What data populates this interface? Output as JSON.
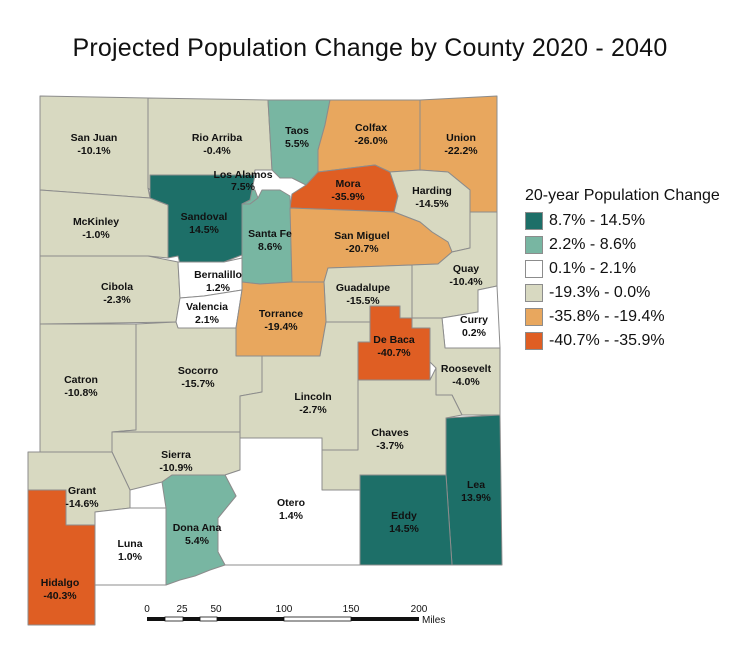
{
  "title": "Projected Population Change by County 2020 - 2040",
  "colors": {
    "c1": "#1d6f68",
    "c2": "#78b6a2",
    "c3": "#ffffff",
    "c4": "#d8d9c1",
    "c5": "#e8a75e",
    "c6": "#df5e23",
    "border": "#8c8c8c"
  },
  "legend": {
    "title": "20-year Population Change",
    "items": [
      {
        "label": "8.7% - 14.5%",
        "color": "#1d6f68"
      },
      {
        "label": "2.2% - 8.6%",
        "color": "#78b6a2"
      },
      {
        "label": "0.1% - 2.1%",
        "color": "#ffffff"
      },
      {
        "label": "-19.3% - 0.0%",
        "color": "#d8d9c1"
      },
      {
        "label": "-35.8% - -19.4%",
        "color": "#e8a75e"
      },
      {
        "label": "-40.7% - -35.9%",
        "color": "#df5e23"
      }
    ]
  },
  "counties": [
    {
      "name": "San Juan",
      "value": "-10.1%"
    },
    {
      "name": "Rio Arriba",
      "value": "-0.4%"
    },
    {
      "name": "Taos",
      "value": "5.5%"
    },
    {
      "name": "Colfax",
      "value": "-26.0%"
    },
    {
      "name": "Union",
      "value": "-22.2%"
    },
    {
      "name": "Los Alamos",
      "value": "7.5%"
    },
    {
      "name": "Mora",
      "value": "-35.9%"
    },
    {
      "name": "Harding",
      "value": "-14.5%"
    },
    {
      "name": "McKinley",
      "value": "-1.0%"
    },
    {
      "name": "Sandoval",
      "value": "14.5%"
    },
    {
      "name": "Santa Fe",
      "value": "8.6%"
    },
    {
      "name": "San Miguel",
      "value": "-20.7%"
    },
    {
      "name": "Quay",
      "value": "-10.4%"
    },
    {
      "name": "Cibola",
      "value": "-2.3%"
    },
    {
      "name": "Bernalillo",
      "value": "1.2%"
    },
    {
      "name": "Guadalupe",
      "value": "-15.5%"
    },
    {
      "name": "Curry",
      "value": "0.2%"
    },
    {
      "name": "Valencia",
      "value": "2.1%"
    },
    {
      "name": "Torrance",
      "value": "-19.4%"
    },
    {
      "name": "De Baca",
      "value": "-40.7%"
    },
    {
      "name": "Catron",
      "value": "-10.8%"
    },
    {
      "name": "Socorro",
      "value": "-15.7%"
    },
    {
      "name": "Roosevelt",
      "value": "-4.0%"
    },
    {
      "name": "Lincoln",
      "value": "-2.7%"
    },
    {
      "name": "Chaves",
      "value": "-3.7%"
    },
    {
      "name": "Sierra",
      "value": "-10.9%"
    },
    {
      "name": "Lea",
      "value": "13.9%"
    },
    {
      "name": "Grant",
      "value": "-14.6%"
    },
    {
      "name": "Otero",
      "value": "1.4%"
    },
    {
      "name": "Eddy",
      "value": "14.5%"
    },
    {
      "name": "Dona Ana",
      "value": "5.4%"
    },
    {
      "name": "Luna",
      "value": "1.0%"
    },
    {
      "name": "Hidalgo",
      "value": "-40.3%"
    }
  ],
  "scale": {
    "ticks": [
      "0",
      "25",
      "50",
      "100",
      "150",
      "200"
    ],
    "unit": "Miles"
  }
}
